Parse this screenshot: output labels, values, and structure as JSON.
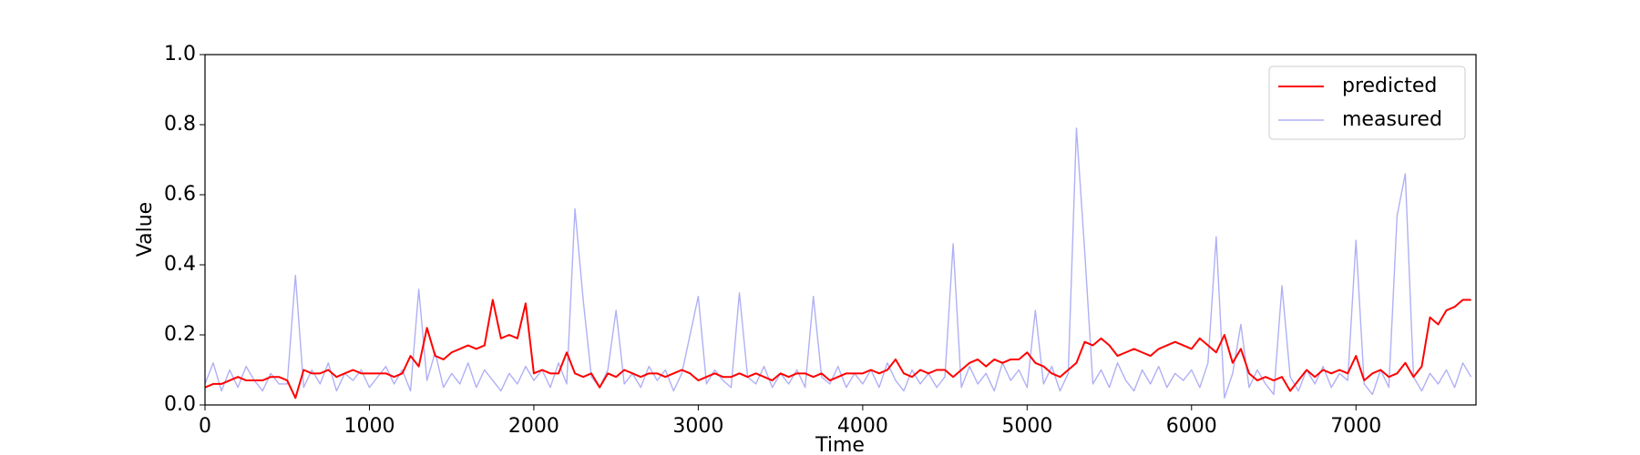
{
  "chart_data": {
    "type": "line",
    "xlabel": "Time",
    "ylabel": "Value",
    "xlim": [
      0,
      7730
    ],
    "ylim": [
      0,
      1
    ],
    "xticks": [
      0,
      1000,
      2000,
      3000,
      4000,
      5000,
      6000,
      7000
    ],
    "yticks": [
      {
        "value": 0,
        "label": "0.0"
      },
      {
        "value": 0.2,
        "label": "0.2"
      },
      {
        "value": 0.4,
        "label": "0.4"
      },
      {
        "value": 0.6,
        "label": "0.6"
      },
      {
        "value": 0.8,
        "label": "0.8"
      },
      {
        "value": 1,
        "label": "1.0"
      }
    ],
    "legend": "upper right",
    "x": [
      0,
      50,
      100,
      150,
      200,
      250,
      300,
      350,
      400,
      450,
      500,
      550,
      600,
      650,
      700,
      750,
      800,
      850,
      900,
      950,
      1000,
      1050,
      1100,
      1150,
      1200,
      1250,
      1300,
      1350,
      1400,
      1450,
      1500,
      1550,
      1600,
      1650,
      1700,
      1750,
      1800,
      1850,
      1900,
      1950,
      2000,
      2050,
      2100,
      2150,
      2200,
      2250,
      2300,
      2350,
      2400,
      2450,
      2500,
      2550,
      2600,
      2650,
      2700,
      2750,
      2800,
      2850,
      2900,
      2950,
      3000,
      3050,
      3100,
      3150,
      3200,
      3250,
      3300,
      3350,
      3400,
      3450,
      3500,
      3550,
      3600,
      3650,
      3700,
      3750,
      3800,
      3850,
      3900,
      3950,
      4000,
      4050,
      4100,
      4150,
      4200,
      4250,
      4300,
      4350,
      4400,
      4450,
      4500,
      4550,
      4600,
      4650,
      4700,
      4750,
      4800,
      4850,
      4900,
      4950,
      5000,
      5050,
      5100,
      5150,
      5200,
      5250,
      5300,
      5350,
      5400,
      5450,
      5500,
      5550,
      5600,
      5650,
      5700,
      5750,
      5800,
      5850,
      5900,
      5950,
      6000,
      6050,
      6100,
      6150,
      6200,
      6250,
      6300,
      6350,
      6400,
      6450,
      6500,
      6550,
      6600,
      6650,
      6700,
      6750,
      6800,
      6850,
      6900,
      6950,
      7000,
      7050,
      7100,
      7150,
      7200,
      7250,
      7300,
      7350,
      7400,
      7450,
      7500,
      7550,
      7600,
      7650,
      7700
    ],
    "series": [
      {
        "name": "predicted",
        "color": "#ff0000",
        "width": 2,
        "values": [
          0.05,
          0.06,
          0.06,
          0.07,
          0.08,
          0.07,
          0.07,
          0.07,
          0.08,
          0.08,
          0.07,
          0.02,
          0.1,
          0.09,
          0.09,
          0.1,
          0.08,
          0.09,
          0.1,
          0.09,
          0.09,
          0.09,
          0.09,
          0.08,
          0.09,
          0.14,
          0.11,
          0.22,
          0.14,
          0.13,
          0.15,
          0.16,
          0.17,
          0.16,
          0.17,
          0.3,
          0.19,
          0.2,
          0.19,
          0.29,
          0.09,
          0.1,
          0.09,
          0.09,
          0.15,
          0.09,
          0.08,
          0.09,
          0.05,
          0.09,
          0.08,
          0.1,
          0.09,
          0.08,
          0.09,
          0.09,
          0.08,
          0.09,
          0.1,
          0.09,
          0.07,
          0.08,
          0.09,
          0.08,
          0.08,
          0.09,
          0.08,
          0.09,
          0.08,
          0.07,
          0.09,
          0.08,
          0.09,
          0.09,
          0.08,
          0.09,
          0.07,
          0.08,
          0.09,
          0.09,
          0.09,
          0.1,
          0.09,
          0.1,
          0.13,
          0.09,
          0.08,
          0.1,
          0.09,
          0.1,
          0.1,
          0.08,
          0.1,
          0.12,
          0.13,
          0.11,
          0.13,
          0.12,
          0.13,
          0.13,
          0.15,
          0.12,
          0.11,
          0.09,
          0.08,
          0.1,
          0.12,
          0.18,
          0.17,
          0.19,
          0.17,
          0.14,
          0.15,
          0.16,
          0.15,
          0.14,
          0.16,
          0.17,
          0.18,
          0.17,
          0.16,
          0.19,
          0.17,
          0.15,
          0.2,
          0.12,
          0.16,
          0.09,
          0.07,
          0.08,
          0.07,
          0.08,
          0.04,
          0.07,
          0.1,
          0.08,
          0.1,
          0.09,
          0.1,
          0.09,
          0.14,
          0.07,
          0.09,
          0.1,
          0.08,
          0.09,
          0.12,
          0.08,
          0.11,
          0.25,
          0.23,
          0.27,
          0.28,
          0.3,
          0.3
        ]
      },
      {
        "name": "measured",
        "color": "#b0b0f5",
        "width": 1.4,
        "values": [
          0.06,
          0.12,
          0.04,
          0.1,
          0.05,
          0.11,
          0.07,
          0.04,
          0.09,
          0.06,
          0.06,
          0.37,
          0.05,
          0.1,
          0.06,
          0.12,
          0.04,
          0.09,
          0.07,
          0.1,
          0.05,
          0.08,
          0.11,
          0.06,
          0.1,
          0.04,
          0.33,
          0.07,
          0.15,
          0.05,
          0.09,
          0.06,
          0.12,
          0.05,
          0.1,
          0.07,
          0.04,
          0.09,
          0.06,
          0.11,
          0.07,
          0.1,
          0.05,
          0.12,
          0.06,
          0.56,
          0.3,
          0.08,
          0.05,
          0.1,
          0.27,
          0.06,
          0.09,
          0.05,
          0.11,
          0.07,
          0.1,
          0.04,
          0.09,
          0.2,
          0.31,
          0.06,
          0.1,
          0.07,
          0.05,
          0.32,
          0.08,
          0.06,
          0.11,
          0.05,
          0.09,
          0.06,
          0.1,
          0.05,
          0.31,
          0.08,
          0.06,
          0.11,
          0.05,
          0.09,
          0.06,
          0.1,
          0.05,
          0.12,
          0.07,
          0.04,
          0.1,
          0.06,
          0.09,
          0.05,
          0.08,
          0.46,
          0.05,
          0.11,
          0.06,
          0.09,
          0.04,
          0.12,
          0.07,
          0.1,
          0.05,
          0.27,
          0.06,
          0.11,
          0.04,
          0.09,
          0.79,
          0.44,
          0.06,
          0.1,
          0.05,
          0.12,
          0.07,
          0.04,
          0.1,
          0.06,
          0.11,
          0.05,
          0.09,
          0.07,
          0.1,
          0.05,
          0.12,
          0.48,
          0.02,
          0.09,
          0.23,
          0.05,
          0.1,
          0.06,
          0.03,
          0.34,
          0.08,
          0.04,
          0.1,
          0.06,
          0.11,
          0.05,
          0.09,
          0.07,
          0.47,
          0.06,
          0.03,
          0.1,
          0.05,
          0.54,
          0.66,
          0.08,
          0.04,
          0.09,
          0.06,
          0.1,
          0.05,
          0.12,
          0.08
        ]
      }
    ]
  }
}
